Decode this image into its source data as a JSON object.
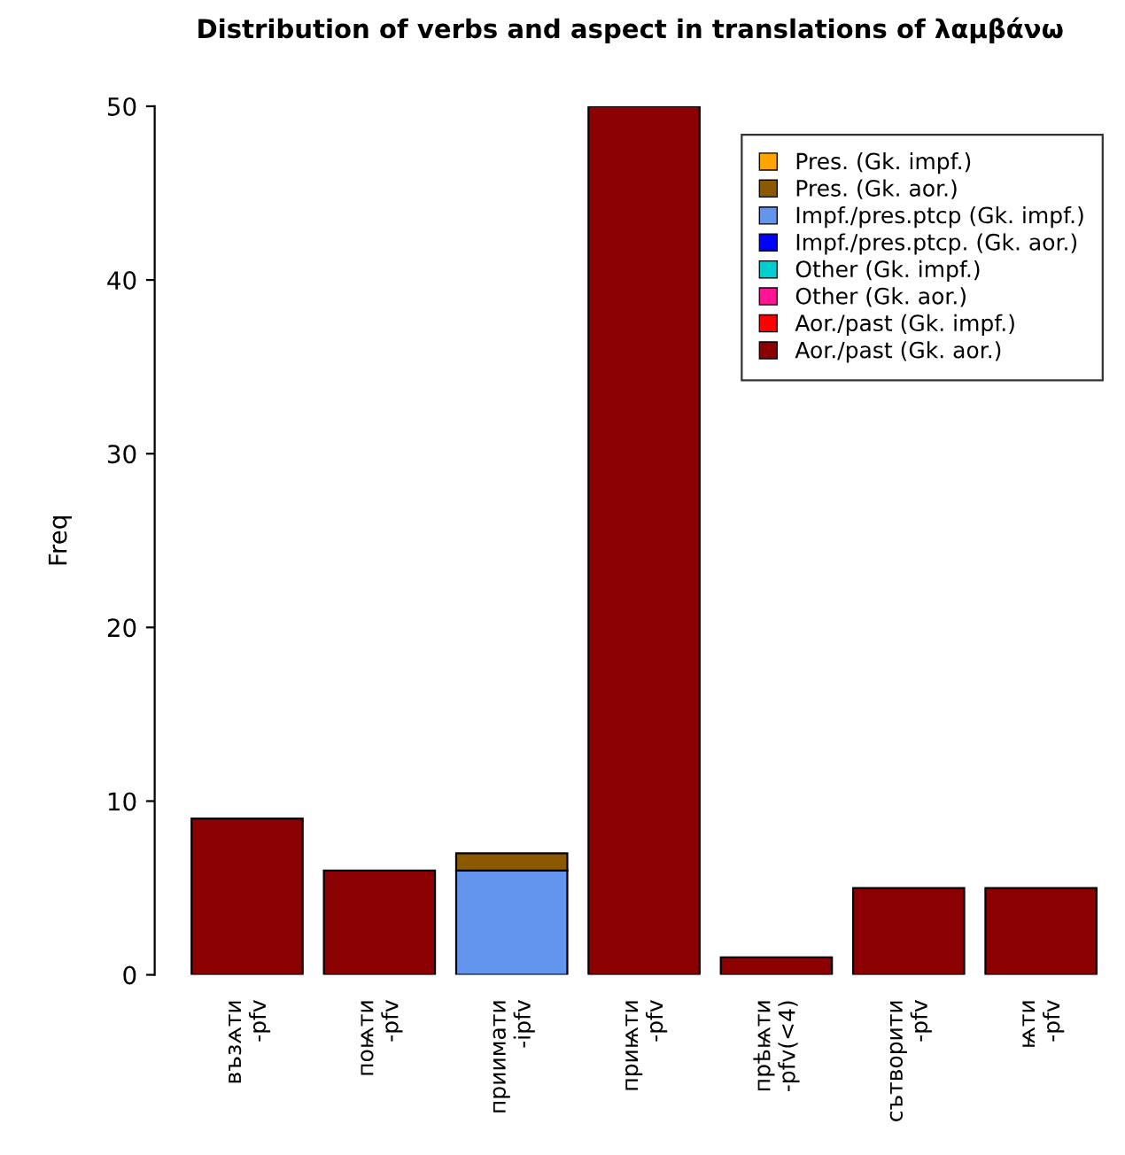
{
  "chart_data": {
    "type": "bar",
    "title": "Distribution of verbs and aspect in translations of λαμβάνω",
    "ylabel": "Freq",
    "categories": [
      "възѧти\n-pfv",
      "поѩти\n-pfv",
      "приимати\n-ipfv",
      "приѩти\n-pfv",
      "прѣѩти\n-pfv(<4)",
      "сътворити\n-pfv",
      "ѩти\n-pfv"
    ],
    "stacked": true,
    "series": [
      {
        "name": "Aor./past (Gk. aor.)",
        "color": "#8b0000",
        "values": [
          9,
          6,
          0,
          50,
          1,
          5,
          5
        ]
      },
      {
        "name": "Aor./past (Gk. impf.)",
        "color": "#ff0000",
        "values": [
          0,
          0,
          0,
          0,
          0,
          0,
          0
        ]
      },
      {
        "name": "Other (Gk. aor.)",
        "color": "#ff1493",
        "values": [
          0,
          0,
          0,
          0,
          0,
          0,
          0
        ]
      },
      {
        "name": "Other (Gk. impf.)",
        "color": "#00ced1",
        "values": [
          0,
          0,
          0,
          0,
          0,
          0,
          0
        ]
      },
      {
        "name": "Impf./pres.ptcp. (Gk. aor.)",
        "color": "#0000ff",
        "values": [
          0,
          0,
          0,
          0,
          0,
          0,
          0
        ]
      },
      {
        "name": "Impf./pres.ptcp (Gk. impf.)",
        "color": "#6495ed",
        "values": [
          0,
          0,
          6,
          0,
          0,
          0,
          0
        ]
      },
      {
        "name": "Pres. (Gk. aor.)",
        "color": "#8b5a00",
        "values": [
          0,
          0,
          1,
          0,
          0,
          0,
          0
        ]
      },
      {
        "name": "Pres. (Gk. impf.)",
        "color": "#ffa500",
        "values": [
          0,
          0,
          0,
          0,
          0,
          0,
          0
        ]
      }
    ],
    "ylim": [
      0,
      50
    ],
    "yticks": [
      0,
      10,
      20,
      30,
      40,
      50
    ],
    "grid": false,
    "legend": "top right"
  }
}
